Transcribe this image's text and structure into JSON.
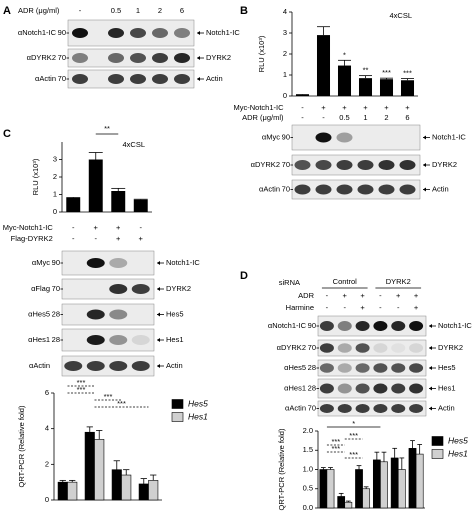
{
  "panel_a": {
    "letter": "A",
    "header": "ADR (μg/ml)",
    "lanes": [
      "-",
      "0.5",
      "1",
      "2",
      "6"
    ],
    "blots": [
      {
        "antibody": "αNotch1-IC",
        "mw": 90,
        "target": "Notch1-IC"
      },
      {
        "antibody": "αDYRK2",
        "mw": 70,
        "target": "DYRK2"
      },
      {
        "antibody": "αActin",
        "mw": 70,
        "target": "Actin"
      }
    ]
  },
  "panel_b": {
    "letter": "B",
    "blots": [
      {
        "antibody": "αMyc",
        "mw": 90,
        "target": "Notch1-IC"
      },
      {
        "antibody": "αDYRK2",
        "mw": 70,
        "target": "DYRK2"
      },
      {
        "antibody": "αActin",
        "mw": 70,
        "target": "Actin"
      }
    ]
  },
  "panel_c": {
    "letter": "C",
    "blots": [
      {
        "antibody": "αMyc",
        "mw": 90,
        "target": "Notch1-IC"
      },
      {
        "antibody": "αFlag",
        "mw": 70,
        "target": "DYRK2"
      },
      {
        "antibody": "αHes5",
        "mw": 28,
        "target": "Hes5"
      },
      {
        "antibody": "αHes1",
        "mw": 28,
        "target": "Hes1"
      },
      {
        "antibody": "αActin",
        "target": "Actin"
      }
    ]
  },
  "panel_d": {
    "letter": "D",
    "sirna_label": "siRNA",
    "sirna_groups": [
      "Control",
      "DYRK2"
    ],
    "conditions": [
      {
        "label": "ADR",
        "values": [
          "-",
          "+",
          "+",
          "-",
          "+",
          "+"
        ]
      },
      {
        "label": "Harmine",
        "values": [
          "-",
          "-",
          "+",
          "-",
          "-",
          "+"
        ]
      }
    ],
    "blots": [
      {
        "antibody": "αNotch1-IC",
        "mw": 90,
        "target": "Notch1-IC"
      },
      {
        "antibody": "αDYRK2",
        "mw": 70,
        "target": "DYRK2"
      },
      {
        "antibody": "αHes5",
        "mw": 28,
        "target": "Hes5"
      },
      {
        "antibody": "αHes1",
        "mw": 28,
        "target": "Hes1"
      },
      {
        "antibody": "αActin",
        "mw": 70,
        "target": "Actin"
      }
    ]
  },
  "chart_data": [
    {
      "type": "bar",
      "subtitle": "4xCSL",
      "y_label": "RLU (x10³)",
      "color": "#000000",
      "values": [
        0.05,
        2.9,
        1.45,
        0.85,
        0.8,
        0.75
      ],
      "errors": [
        0.02,
        0.4,
        0.25,
        0.12,
        0.05,
        0.08
      ],
      "significance": [
        null,
        null,
        "*",
        "**",
        "***",
        "***"
      ],
      "conditions": [
        {
          "label": "Myc-Notch1-IC",
          "values": [
            "-",
            "+",
            "+",
            "+",
            "+",
            "+"
          ]
        },
        {
          "label": "ADR (μg/ml)",
          "values": [
            "-",
            "-",
            "0.5",
            "1",
            "2",
            "6"
          ]
        }
      ],
      "ylim": [
        0,
        4
      ],
      "yticks": [
        0,
        1,
        2,
        3,
        4
      ]
    },
    {
      "type": "bar",
      "subtitle": "4xCSL",
      "y_label": "RLU (x10³)",
      "color": "#000000",
      "values": [
        0.8,
        3.0,
        1.2,
        0.7
      ],
      "errors": [
        0.03,
        0.4,
        0.15,
        0.03
      ],
      "annotations": [
        "**"
      ],
      "conditions": [
        {
          "label": "Myc-Notch1-IC",
          "values": [
            "-",
            "+",
            "+",
            "-"
          ]
        },
        {
          "label": "Flag-DYRK2",
          "values": [
            "-",
            "-",
            "+",
            "+"
          ]
        }
      ],
      "ylim": [
        0,
        4
      ],
      "yticks": [
        0,
        1,
        2,
        3
      ]
    },
    {
      "type": "bar",
      "y_label": "QRT-PCR (Relative fold)",
      "series": [
        {
          "name": "Hes5",
          "color": "#000000",
          "values": [
            1.0,
            3.8,
            1.7,
            0.9
          ],
          "errors": [
            0.1,
            0.3,
            0.5,
            0.3
          ]
        },
        {
          "name": "Hes1",
          "color": "#d0d0d0",
          "values": [
            1.0,
            3.4,
            1.4,
            1.1
          ],
          "errors": [
            0.1,
            0.5,
            0.3,
            0.3
          ]
        }
      ],
      "annotations": [
        "***",
        "***",
        "***",
        "***"
      ],
      "ylim": [
        0,
        6
      ],
      "yticks": [
        0,
        2,
        4,
        6
      ]
    },
    {
      "type": "bar",
      "y_label": "QRT-PCR (Relative fold)",
      "series": [
        {
          "name": "Hes5",
          "color": "#000000",
          "values": [
            1.0,
            0.3,
            1.0,
            1.25,
            1.3,
            1.55
          ],
          "errors": [
            0.05,
            0.08,
            0.1,
            0.2,
            0.25,
            0.2
          ]
        },
        {
          "name": "Hes1",
          "color": "#d0d0d0",
          "values": [
            1.0,
            0.15,
            0.5,
            1.2,
            1.0,
            1.4
          ],
          "errors": [
            0.05,
            0.03,
            0.05,
            0.25,
            0.3,
            0.25
          ]
        }
      ],
      "annotations": [
        "*",
        "***",
        "***",
        "***",
        "***"
      ],
      "ylim": [
        0,
        2
      ],
      "yticks": [
        {
          "value": 0,
          "label": "0.0"
        },
        {
          "value": 0.5,
          "label": "0.5"
        },
        {
          "value": 1,
          "label": "1.0"
        },
        {
          "value": 1.5,
          "label": "1.5"
        },
        {
          "value": 2,
          "label": "2.0"
        }
      ]
    }
  ]
}
